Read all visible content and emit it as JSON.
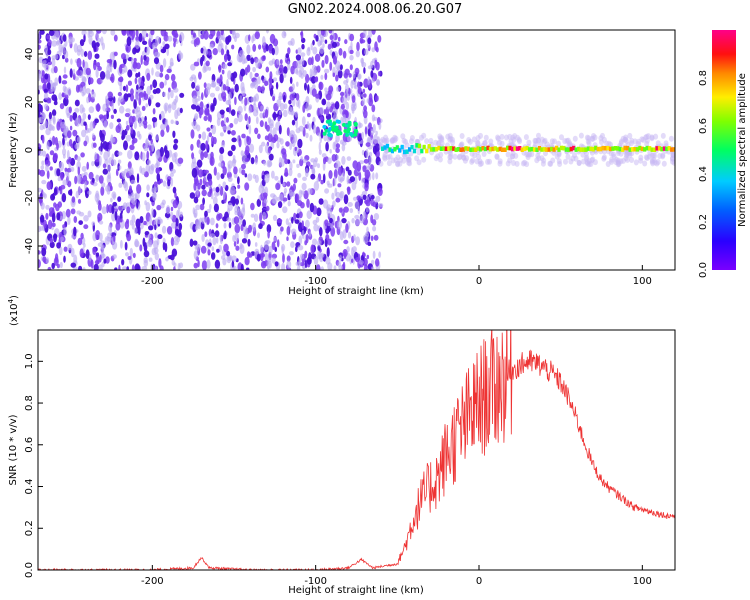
{
  "title": "GN02.2024.008.06.20.G07",
  "chart_data": [
    {
      "type": "heatmap",
      "xlabel": "Height of straight line (km)",
      "ylabel": "Frequency (Hz)",
      "xlim": [
        -270,
        120
      ],
      "ylim": [
        -50,
        50
      ],
      "x_ticks": [
        -200,
        -100,
        0,
        100
      ],
      "y_ticks": [
        -40,
        -20,
        0,
        20,
        40
      ],
      "colorbar": {
        "label": "Normalized spectral amplitude",
        "range": [
          0.0,
          1.0
        ],
        "ticks": [
          0.0,
          0.2,
          0.4,
          0.6,
          0.8
        ],
        "colormap": "rainbow (purple-blue-cyan-green-yellow-red-magenta)"
      },
      "features": {
        "noise_region_x": [
          -270,
          -60
        ],
        "gap_x": [
          -182,
          -176
        ],
        "signal_line_freq_hz": 0,
        "signal_line_x": [
          -60,
          120
        ],
        "peak_amplitude_band_x": [
          -30,
          110
        ]
      },
      "grid": false
    },
    {
      "type": "line",
      "xlabel": "Height of straight line (km)",
      "ylabel": "SNR (10 * v/v)",
      "y_multiplier": "(x10",
      "y_multiplier_exp": "4",
      "y_multiplier_close": ")",
      "xlim": [
        -270,
        120
      ],
      "ylim": [
        0.0,
        1.15
      ],
      "x_ticks": [
        -200,
        -100,
        0,
        100
      ],
      "y_ticks": [
        0.0,
        0.2,
        0.4,
        0.6,
        0.8,
        1.0
      ],
      "color": "#ee3333",
      "series": [
        {
          "x": [
            -270,
            -200,
            -175,
            -170,
            -165,
            -140,
            -100,
            -80,
            -72,
            -65,
            -50,
            -45,
            -40,
            -35,
            -30,
            -25,
            -20,
            -15,
            -10,
            -5,
            0,
            5,
            10,
            15,
            20,
            25,
            30,
            35,
            40,
            45,
            50,
            55,
            60,
            65,
            70,
            75,
            80,
            85,
            90,
            95,
            100,
            105,
            110,
            115,
            120
          ],
          "values": [
            0.0,
            0.0,
            0.01,
            0.06,
            0.01,
            0.0,
            0.0,
            0.01,
            0.05,
            0.01,
            0.03,
            0.12,
            0.25,
            0.34,
            0.4,
            0.45,
            0.55,
            0.62,
            0.68,
            0.75,
            0.8,
            0.85,
            0.88,
            0.92,
            0.96,
            0.98,
            1.0,
            0.99,
            0.97,
            0.94,
            0.9,
            0.82,
            0.72,
            0.6,
            0.5,
            0.43,
            0.39,
            0.36,
            0.33,
            0.3,
            0.29,
            0.28,
            0.27,
            0.26,
            0.26
          ]
        }
      ],
      "grid": false
    }
  ]
}
